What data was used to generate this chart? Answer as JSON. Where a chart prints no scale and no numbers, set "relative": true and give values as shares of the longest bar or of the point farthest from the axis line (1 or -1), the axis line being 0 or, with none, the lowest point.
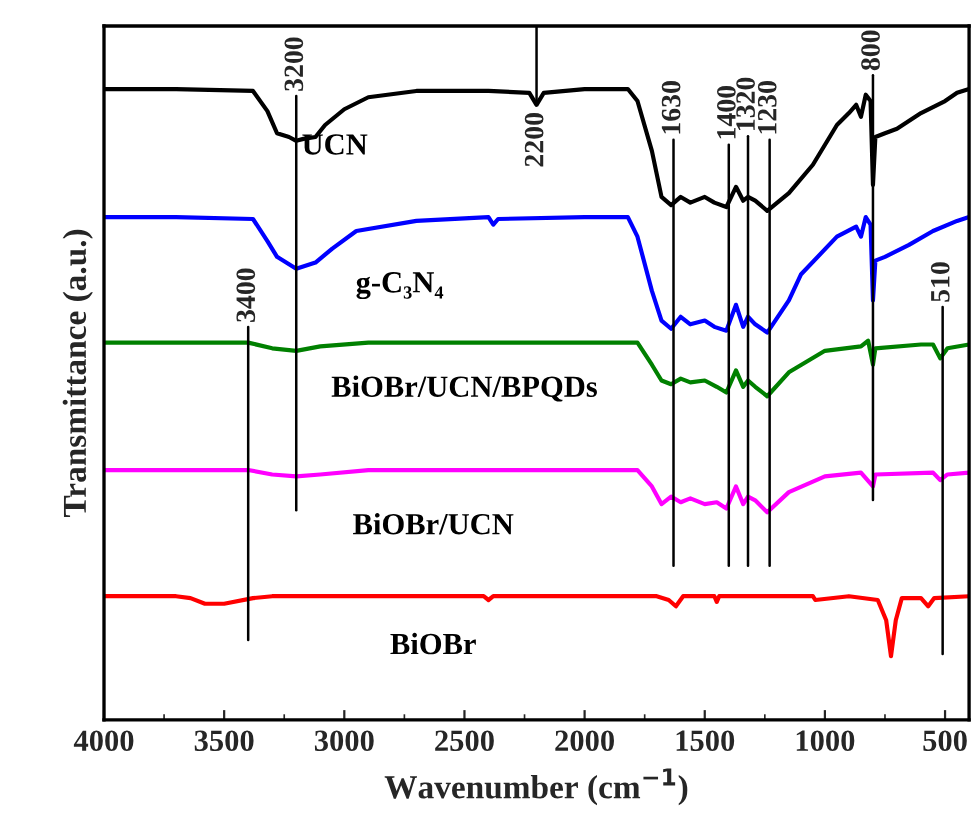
{
  "chart_data": {
    "type": "line",
    "relative": true,
    "xlabel": "Wavenumber (cm$^{−1}$)",
    "ylabel": "Transmittance (a.u.)",
    "xlim": [
      4000,
      400
    ],
    "xticks": [
      4000,
      3500,
      3000,
      2500,
      2000,
      1500,
      1000,
      500
    ],
    "tick_labels": "x",
    "grid": false,
    "legend": false,
    "marker": "none",
    "line_style": "solid",
    "series": [
      {
        "name": "UCN",
        "color": "#000000",
        "x": [
          4000,
          3700,
          3380,
          3320,
          3280,
          3230,
          3200,
          3170,
          3120,
          3080,
          3000,
          2900,
          2700,
          2400,
          2230,
          2200,
          2170,
          2000,
          1820,
          1780,
          1720,
          1680,
          1640,
          1600,
          1560,
          1500,
          1460,
          1410,
          1370,
          1340,
          1320,
          1290,
          1240,
          1150,
          1050,
          950,
          900,
          870,
          850,
          830,
          810,
          800,
          790,
          750,
          700,
          600,
          500,
          450,
          400
        ],
        "values": [
          1.0,
          1.0,
          0.997,
          0.965,
          0.93,
          0.924,
          0.918,
          0.921,
          0.924,
          0.943,
          0.968,
          0.987,
          0.997,
          0.997,
          0.994,
          0.975,
          0.994,
          1.0,
          1.0,
          0.981,
          0.902,
          0.829,
          0.816,
          0.829,
          0.82,
          0.829,
          0.82,
          0.813,
          0.845,
          0.823,
          0.829,
          0.823,
          0.807,
          0.835,
          0.88,
          0.943,
          0.962,
          0.975,
          0.956,
          0.991,
          0.981,
          0.848,
          0.924,
          0.93,
          0.937,
          0.962,
          0.981,
          0.994,
          1.0
        ]
      },
      {
        "name": "g-C₃N₄",
        "color": "#0000ff",
        "x": [
          4000,
          3700,
          3380,
          3320,
          3280,
          3200,
          3120,
          3050,
          2950,
          2700,
          2400,
          2380,
          2360,
          2000,
          1820,
          1780,
          1720,
          1680,
          1640,
          1600,
          1560,
          1500,
          1460,
          1410,
          1370,
          1340,
          1320,
          1290,
          1240,
          1150,
          1100,
          950,
          870,
          850,
          830,
          810,
          800,
          790,
          750,
          650,
          550,
          450,
          400
        ],
        "values": [
          0.797,
          0.797,
          0.794,
          0.759,
          0.734,
          0.715,
          0.725,
          0.747,
          0.775,
          0.791,
          0.797,
          0.785,
          0.794,
          0.797,
          0.797,
          0.766,
          0.68,
          0.633,
          0.62,
          0.639,
          0.627,
          0.633,
          0.623,
          0.617,
          0.658,
          0.623,
          0.639,
          0.627,
          0.614,
          0.665,
          0.706,
          0.766,
          0.782,
          0.766,
          0.797,
          0.785,
          0.665,
          0.728,
          0.734,
          0.753,
          0.775,
          0.791,
          0.797
        ]
      },
      {
        "name": "BiOBr/UCN/BPQDs",
        "color": "#008000",
        "x": [
          4000,
          3400,
          3300,
          3200,
          3100,
          2900,
          1780,
          1720,
          1680,
          1640,
          1600,
          1560,
          1500,
          1450,
          1410,
          1370,
          1340,
          1320,
          1290,
          1240,
          1150,
          1000,
          850,
          820,
          800,
          790,
          600,
          550,
          520,
          490,
          400
        ],
        "values": [
          0.598,
          0.598,
          0.589,
          0.585,
          0.592,
          0.598,
          0.598,
          0.563,
          0.538,
          0.532,
          0.541,
          0.535,
          0.538,
          0.528,
          0.519,
          0.554,
          0.528,
          0.538,
          0.528,
          0.513,
          0.551,
          0.585,
          0.592,
          0.601,
          0.563,
          0.589,
          0.595,
          0.595,
          0.573,
          0.589,
          0.595
        ]
      },
      {
        "name": "BiOBr/UCN",
        "color": "#ff00ff",
        "x": [
          4000,
          3400,
          3300,
          3200,
          3100,
          2900,
          1780,
          1720,
          1680,
          1640,
          1600,
          1560,
          1500,
          1450,
          1410,
          1370,
          1340,
          1320,
          1290,
          1240,
          1150,
          1000,
          850,
          800,
          790,
          550,
          520,
          490,
          400
        ],
        "values": [
          0.396,
          0.396,
          0.389,
          0.386,
          0.389,
          0.396,
          0.396,
          0.37,
          0.342,
          0.354,
          0.345,
          0.351,
          0.342,
          0.345,
          0.335,
          0.37,
          0.342,
          0.354,
          0.348,
          0.329,
          0.361,
          0.386,
          0.392,
          0.37,
          0.389,
          0.392,
          0.38,
          0.389,
          0.392
        ]
      },
      {
        "name": "BiOBr",
        "color": "#ff0000",
        "x": [
          4000,
          3700,
          3640,
          3580,
          3500,
          3380,
          3300,
          2420,
          2400,
          2380,
          1700,
          1650,
          1620,
          1590,
          1460,
          1450,
          1440,
          1050,
          1040,
          900,
          780,
          745,
          725,
          705,
          680,
          600,
          570,
          545,
          400
        ],
        "values": [
          0.196,
          0.196,
          0.193,
          0.184,
          0.184,
          0.193,
          0.196,
          0.196,
          0.19,
          0.196,
          0.196,
          0.19,
          0.18,
          0.196,
          0.196,
          0.187,
          0.196,
          0.196,
          0.19,
          0.196,
          0.19,
          0.158,
          0.101,
          0.158,
          0.193,
          0.193,
          0.18,
          0.193,
          0.196
        ]
      }
    ],
    "ref_lines": [
      {
        "axis": "x",
        "value": 3200,
        "label": "3200"
      },
      {
        "axis": "x",
        "value": 2200,
        "label": "2200"
      },
      {
        "axis": "x",
        "value": 1630,
        "label": "1630"
      },
      {
        "axis": "x",
        "value": 1400,
        "label": "1400"
      },
      {
        "axis": "x",
        "value": 1320,
        "label": "1320"
      },
      {
        "axis": "x",
        "value": 1230,
        "label": "1230"
      },
      {
        "axis": "x",
        "value": 800,
        "label": "800"
      },
      {
        "axis": "x",
        "value": 3400,
        "label": "3400"
      },
      {
        "axis": "x",
        "value": 510,
        "label": "510"
      }
    ]
  }
}
